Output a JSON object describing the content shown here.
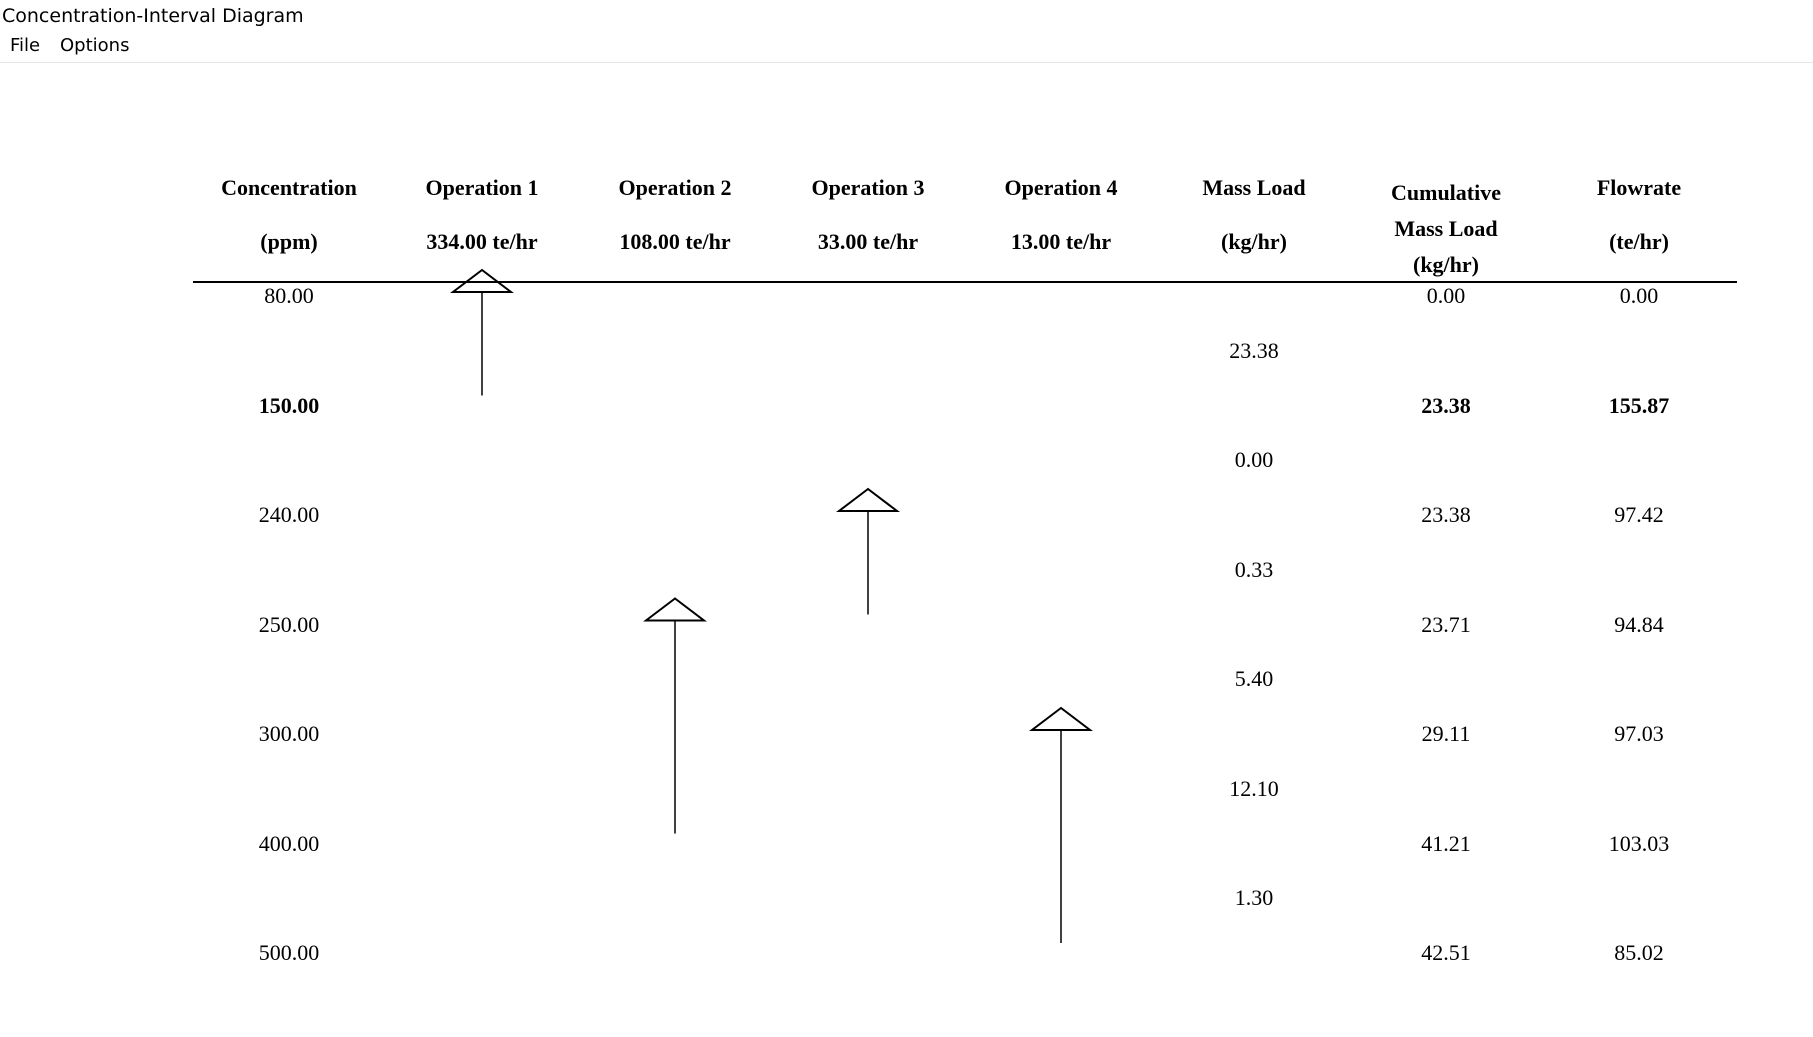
{
  "window": {
    "title": "Concentration-Interval Diagram"
  },
  "menu": {
    "file": "File",
    "options": "Options"
  },
  "headers": {
    "concentration": {
      "line1": "Concentration",
      "line2": "(ppm)"
    },
    "operations": [
      {
        "name": "Operation 1",
        "flow": "334.00 te/hr"
      },
      {
        "name": "Operation 2",
        "flow": "108.00 te/hr"
      },
      {
        "name": "Operation 3",
        "flow": "33.00 te/hr"
      },
      {
        "name": "Operation 4",
        "flow": "13.00 te/hr"
      }
    ],
    "mass_load": {
      "line1": "Mass Load",
      "line2": "(kg/hr)"
    },
    "cumulative": {
      "line1": "Cumulative",
      "line2": "Mass Load",
      "line3": "(kg/hr)"
    },
    "flowrate": {
      "line1": "Flowrate",
      "line2": "(te/hr)"
    }
  },
  "levels": [
    {
      "concentration": "80.00",
      "cumulative": "0.00",
      "flowrate": "0.00",
      "bold": false
    },
    {
      "concentration": "150.00",
      "cumulative": "23.38",
      "flowrate": "155.87",
      "bold": true
    },
    {
      "concentration": "240.00",
      "cumulative": "23.38",
      "flowrate": "97.42",
      "bold": false
    },
    {
      "concentration": "250.00",
      "cumulative": "23.71",
      "flowrate": "94.84",
      "bold": false
    },
    {
      "concentration": "300.00",
      "cumulative": "29.11",
      "flowrate": "97.03",
      "bold": false
    },
    {
      "concentration": "400.00",
      "cumulative": "41.21",
      "flowrate": "103.03",
      "bold": false
    },
    {
      "concentration": "500.00",
      "cumulative": "42.51",
      "flowrate": "85.02",
      "bold": false
    }
  ],
  "interval_mass_loads": [
    "23.38",
    "0.00",
    "0.33",
    "5.40",
    "12.10",
    "1.30"
  ],
  "operation_ranges": [
    {
      "operation": 1,
      "from_level": 0,
      "to_level": 1
    },
    {
      "operation": 2,
      "from_level": 3,
      "to_level": 5
    },
    {
      "operation": 3,
      "from_level": 2,
      "to_level": 3
    },
    {
      "operation": 4,
      "from_level": 4,
      "to_level": 6
    }
  ]
}
